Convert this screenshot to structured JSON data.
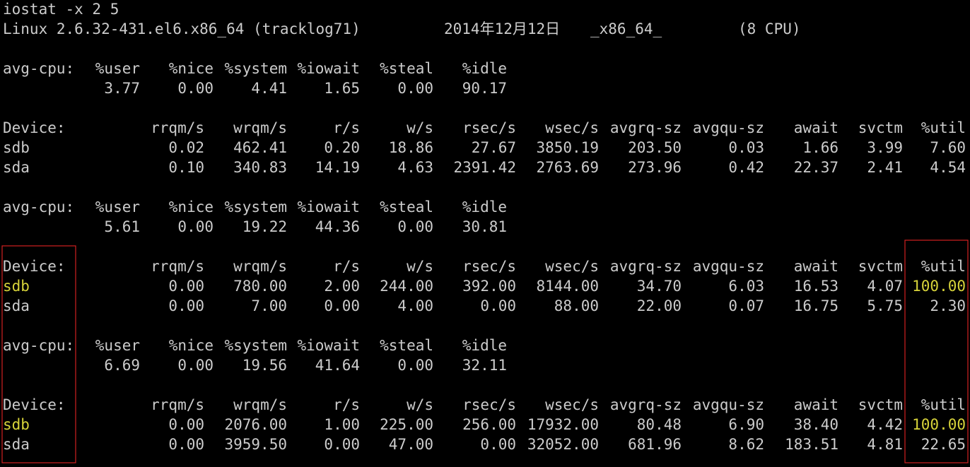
{
  "command": "iostat -x 2 5",
  "system": {
    "kernel": "Linux 2.6.32-431.el6.x86_64 (tracklog71)",
    "date": "2014年12月12日",
    "arch": "_x86_64_",
    "cpus": "(8 CPU)"
  },
  "reports": [
    {
      "cpu": {
        "headers": [
          "avg-cpu:",
          "%user",
          "%nice",
          "%system",
          "%iowait",
          "%steal",
          "%idle"
        ],
        "values": [
          "3.77",
          "0.00",
          "4.41",
          "1.65",
          "0.00",
          "90.17"
        ]
      },
      "devices": {
        "headers": [
          "Device:",
          "rrqm/s",
          "wrqm/s",
          "r/s",
          "w/s",
          "rsec/s",
          "wsec/s",
          "avgrq-sz",
          "avgqu-sz",
          "await",
          "svctm",
          "%util"
        ],
        "rows": [
          [
            "sdb",
            "0.02",
            "462.41",
            "0.20",
            "18.86",
            "27.67",
            "3850.19",
            "203.50",
            "0.03",
            "1.66",
            "3.99",
            "7.60"
          ],
          [
            "sda",
            "0.10",
            "340.83",
            "14.19",
            "4.63",
            "2391.42",
            "2763.69",
            "273.96",
            "0.42",
            "22.37",
            "2.41",
            "4.54"
          ]
        ]
      }
    },
    {
      "cpu": {
        "headers": [
          "avg-cpu:",
          "%user",
          "%nice",
          "%system",
          "%iowait",
          "%steal",
          "%idle"
        ],
        "values": [
          "5.61",
          "0.00",
          "19.22",
          "44.36",
          "0.00",
          "30.81"
        ]
      },
      "devices": {
        "headers": [
          "Device:",
          "rrqm/s",
          "wrqm/s",
          "r/s",
          "w/s",
          "rsec/s",
          "wsec/s",
          "avgrq-sz",
          "avgqu-sz",
          "await",
          "svctm",
          "%util"
        ],
        "rows": [
          [
            "sdb",
            "0.00",
            "780.00",
            "2.00",
            "244.00",
            "392.00",
            "8144.00",
            "34.70",
            "6.03",
            "16.53",
            "4.07",
            "100.00"
          ],
          [
            "sda",
            "0.00",
            "7.00",
            "0.00",
            "4.00",
            "0.00",
            "88.00",
            "22.00",
            "0.07",
            "16.75",
            "5.75",
            "2.30"
          ]
        ]
      }
    },
    {
      "cpu": {
        "headers": [
          "avg-cpu:",
          "%user",
          "%nice",
          "%system",
          "%iowait",
          "%steal",
          "%idle"
        ],
        "values": [
          "6.69",
          "0.00",
          "19.56",
          "41.64",
          "0.00",
          "32.11"
        ]
      },
      "devices": {
        "headers": [
          "Device:",
          "rrqm/s",
          "wrqm/s",
          "r/s",
          "w/s",
          "rsec/s",
          "wsec/s",
          "avgrq-sz",
          "avgqu-sz",
          "await",
          "svctm",
          "%util"
        ],
        "rows": [
          [
            "sdb",
            "0.00",
            "2076.00",
            "1.00",
            "225.00",
            "256.00",
            "17932.00",
            "80.48",
            "6.90",
            "38.40",
            "4.42",
            "100.00"
          ],
          [
            "sda",
            "0.00",
            "3959.50",
            "0.00",
            "47.00",
            "0.00",
            "32052.00",
            "681.96",
            "8.62",
            "183.51",
            "4.81",
            "22.65"
          ]
        ]
      }
    }
  ]
}
